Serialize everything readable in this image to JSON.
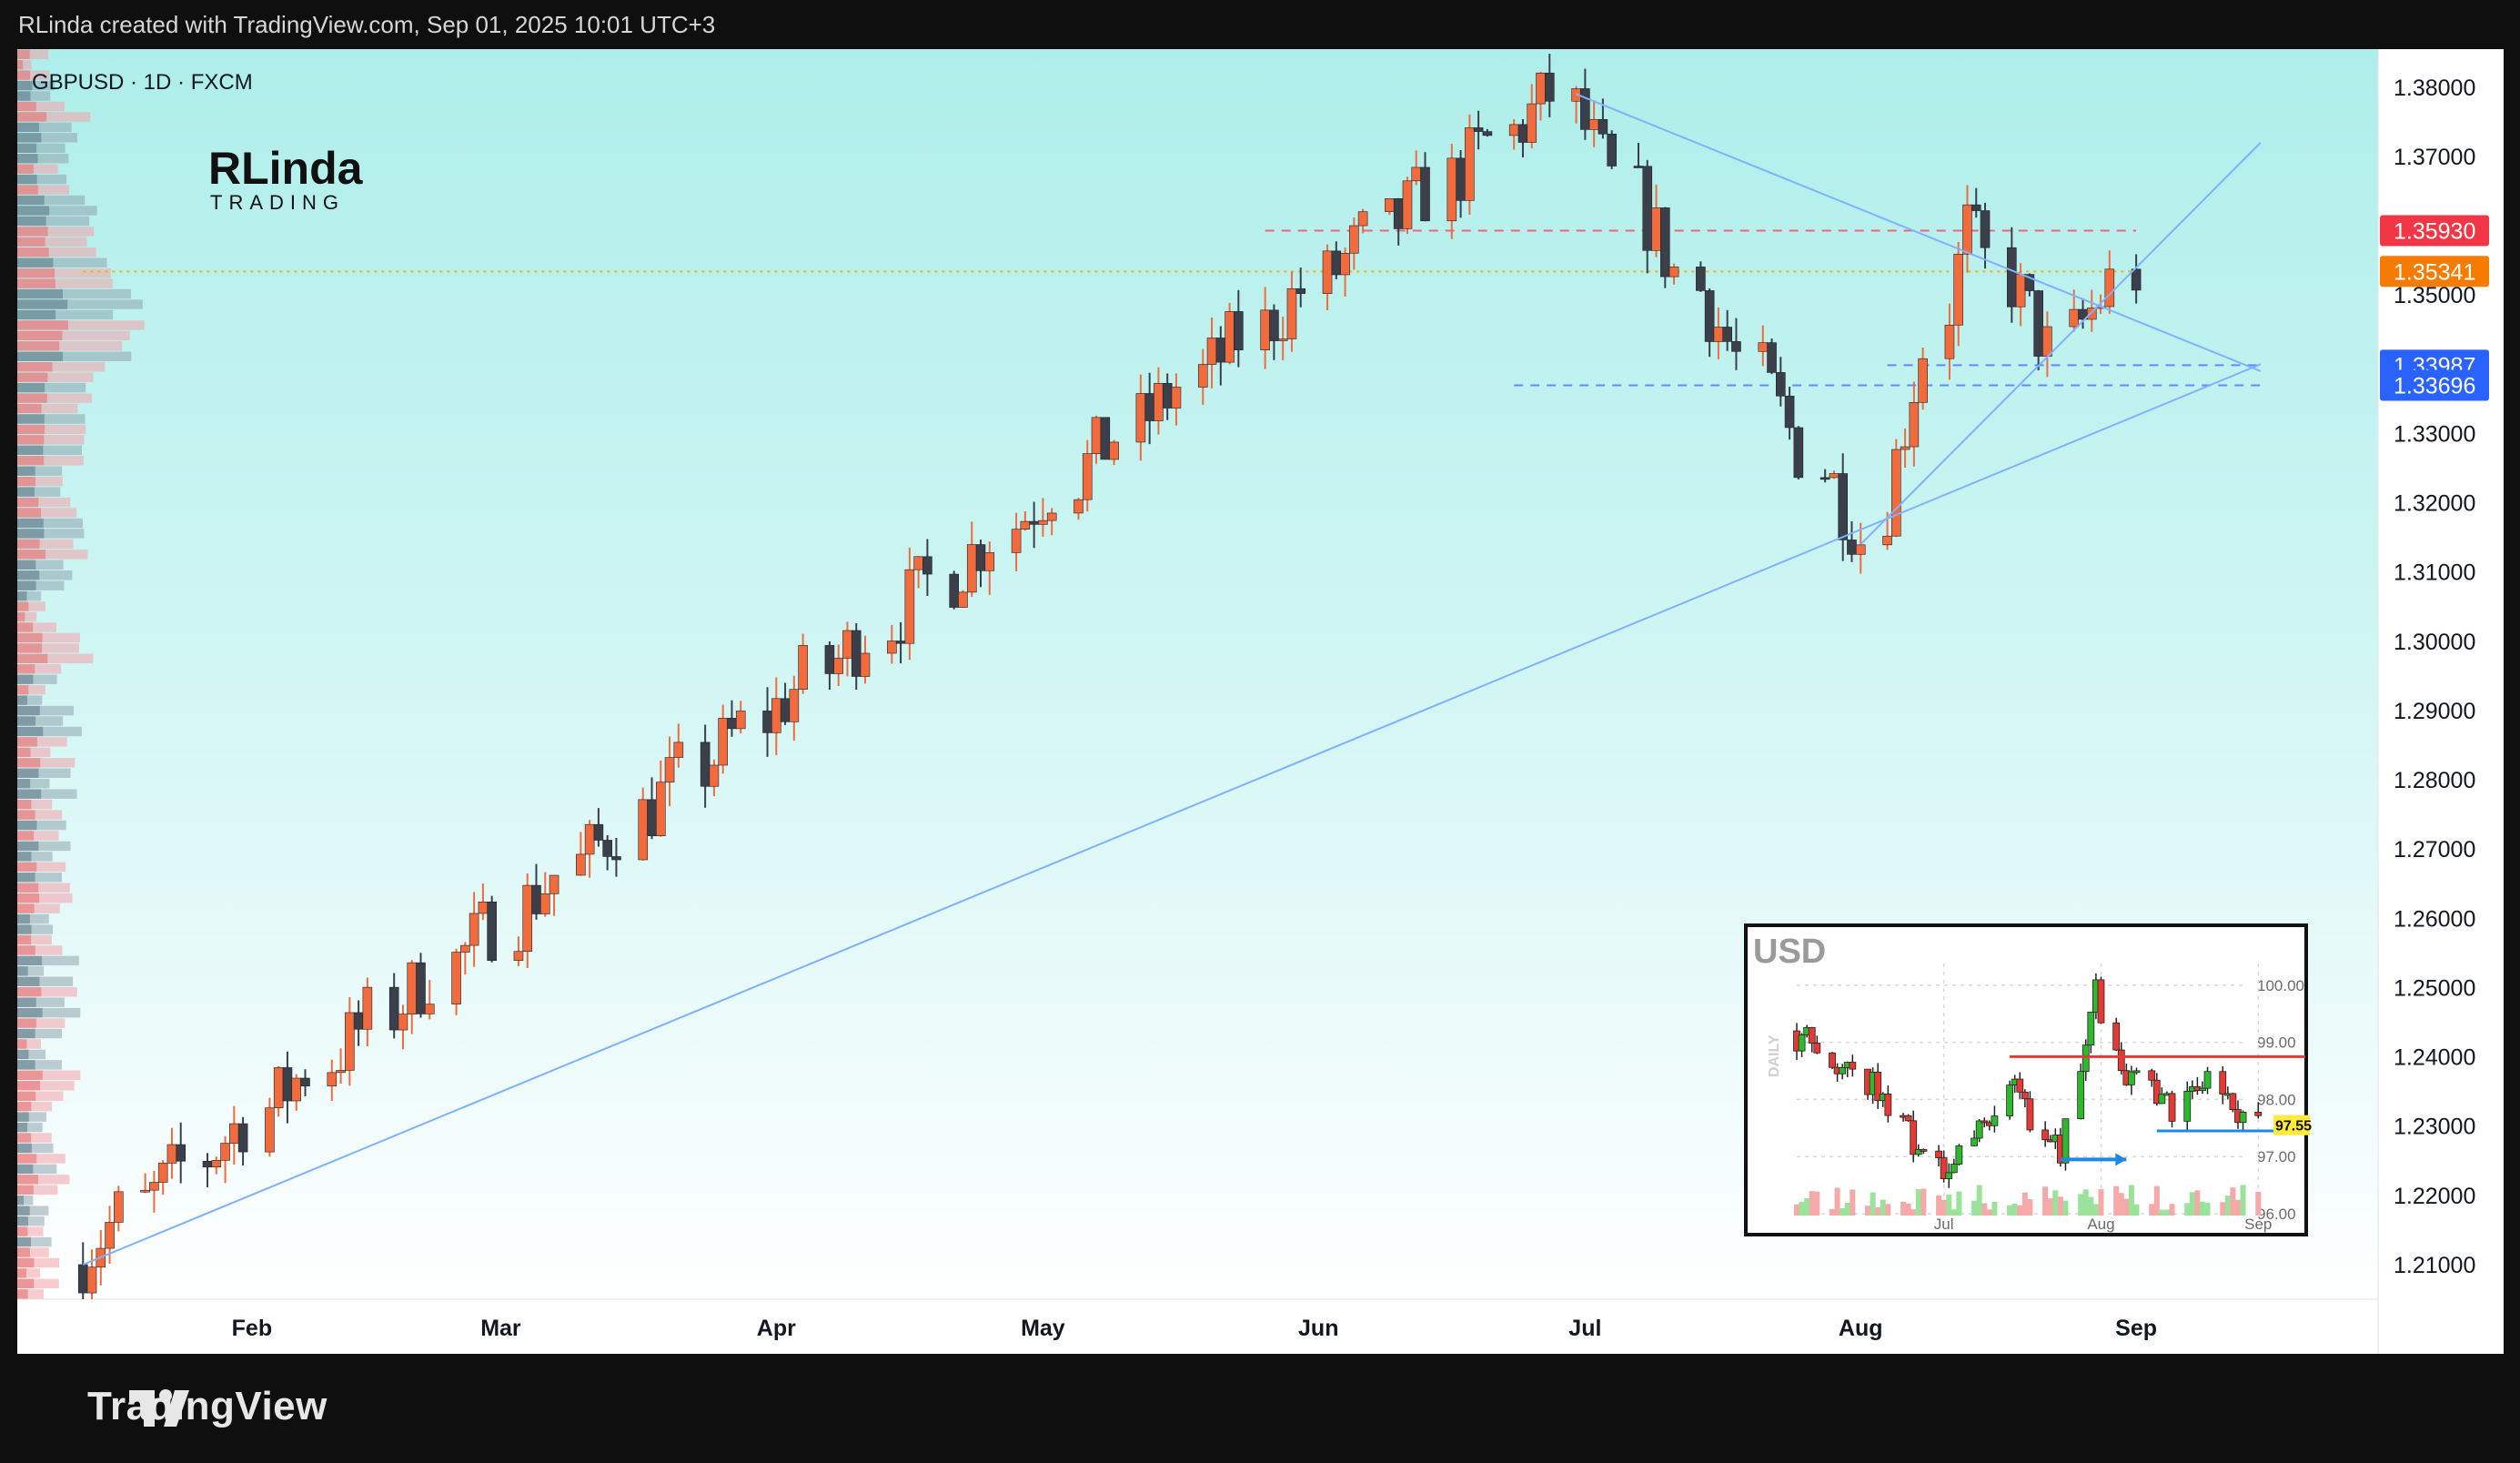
{
  "header": {
    "caption": "RLinda created with TradingView.com, Sep 01, 2025 10:01 UTC+3"
  },
  "symbol": {
    "label": "GBPUSD · 1D · FXCM"
  },
  "branding": {
    "logo_top": "RLinda",
    "logo_bottom": "TRADING"
  },
  "footer": {
    "brand": "TradingView"
  },
  "colors": {
    "up": "#f26b3c",
    "down": "#3a3f4a",
    "price_tag": "#f57c00",
    "resistance_tag": "#f23645",
    "support_tag": "#2962ff",
    "trend": "#7fb1ff"
  },
  "chart_data": {
    "type": "candlestick",
    "ylim": [
      1.205,
      1.3855
    ],
    "x_labels": [
      "Feb",
      "Mar",
      "Apr",
      "May",
      "Jun",
      "Jul",
      "Aug",
      "Sep"
    ],
    "y_ticks": [
      "1.38000",
      "1.37000",
      "1.35000",
      "1.33000",
      "1.32000",
      "1.31000",
      "1.30000",
      "1.29000",
      "1.28000",
      "1.27000",
      "1.26000",
      "1.25000",
      "1.24000",
      "1.23000",
      "1.22000",
      "1.21000"
    ],
    "price_tags": [
      {
        "label": "1.35930",
        "value": 1.3593,
        "color": "#f23645"
      },
      {
        "label": "1.35341",
        "value": 1.35341,
        "color": "#f57c00"
      },
      {
        "label": "1.33987",
        "value": 1.33987,
        "color": "#2962ff"
      },
      {
        "label": "1.33696",
        "value": 1.33696,
        "color": "#2962ff"
      }
    ],
    "segments": [
      {
        "start": "2025-01-13",
        "end": "2025-06-27",
        "from": 1.21,
        "to": 1.379
      },
      {
        "start": "2025-06-27",
        "end": "2025-08-01",
        "from": 1.379,
        "to": 1.315
      },
      {
        "start": "2025-08-01",
        "end": "2025-08-13",
        "from": 1.315,
        "to": 1.3595
      },
      {
        "start": "2025-08-13",
        "end": "2025-08-22",
        "from": 1.3595,
        "to": 1.342
      },
      {
        "start": "2025-08-22",
        "end": "2025-09-01",
        "from": 1.342,
        "to": 1.3534
      }
    ],
    "horizontal_lines": [
      {
        "value": 1.3593,
        "start": "2025-05-26",
        "end": "2025-09-01",
        "style": "dashed",
        "color": "#f0637a"
      },
      {
        "value": 1.3534,
        "start": "2025-01-13",
        "end": "2025-09-01",
        "style": "dotted",
        "color": "#f5b400"
      },
      {
        "value": 1.33987,
        "start": "2025-08-04",
        "end": "2025-09-15",
        "style": "dashed",
        "color": "#5b8cff"
      },
      {
        "value": 1.33696,
        "start": "2025-06-23",
        "end": "2025-09-15",
        "style": "dashed",
        "color": "#5b8cff"
      }
    ],
    "trendlines": [
      {
        "from": [
          "2025-01-13",
          1.21
        ],
        "to": [
          "2025-09-15",
          1.34
        ]
      },
      {
        "from": [
          "2025-06-30",
          1.379
        ],
        "to": [
          "2025-09-15",
          1.339
        ]
      },
      {
        "from": [
          "2025-08-01",
          1.314
        ],
        "to": [
          "2025-09-15",
          1.372
        ]
      }
    ],
    "volume_profile": {
      "bins": 120
    }
  },
  "inset": {
    "title": "USD",
    "side_label": "DAILY",
    "ylim": [
      96.0,
      100.3
    ],
    "y_ticks": [
      "100.00",
      "99.00",
      "98.00",
      "97.00",
      "96.00"
    ],
    "x_labels": [
      "Jul",
      "Aug",
      "Sep"
    ],
    "price_tag": "97.55",
    "segments": [
      {
        "start": "2025-06-02",
        "end": "2025-06-10",
        "from": 99.2,
        "to": 98.7
      },
      {
        "start": "2025-06-10",
        "end": "2025-06-20",
        "from": 98.7,
        "to": 97.9
      },
      {
        "start": "2025-06-20",
        "end": "2025-07-01",
        "from": 97.9,
        "to": 96.5
      },
      {
        "start": "2025-07-01",
        "end": "2025-07-15",
        "from": 96.5,
        "to": 98.2
      },
      {
        "start": "2025-07-15",
        "end": "2025-07-24",
        "from": 98.2,
        "to": 97.1
      },
      {
        "start": "2025-07-24",
        "end": "2025-07-31",
        "from": 97.1,
        "to": 100.0
      },
      {
        "start": "2025-07-31",
        "end": "2025-08-05",
        "from": 100.0,
        "to": 98.6
      },
      {
        "start": "2025-08-05",
        "end": "2025-08-15",
        "from": 98.6,
        "to": 97.8
      },
      {
        "start": "2025-08-15",
        "end": "2025-08-22",
        "from": 97.8,
        "to": 98.3
      },
      {
        "start": "2025-08-22",
        "end": "2025-09-01",
        "from": 98.3,
        "to": 97.6
      }
    ],
    "resistance": 98.75,
    "support": 97.45
  }
}
